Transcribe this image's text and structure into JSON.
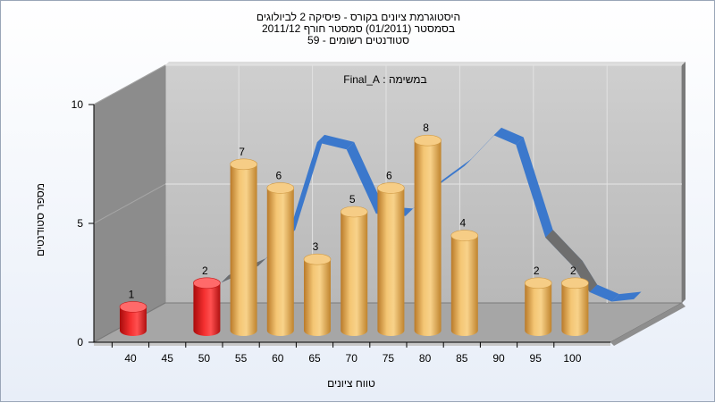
{
  "chart_data": {
    "type": "bar",
    "title": "היסטוגרמת ציונים בקורס - פיסיקה 2 לביולוגים",
    "subtitle_lines": [
      "בסמסטר (01/2011) סמסטר חורף 2011/12",
      "סטודנטים רשומים - 59"
    ],
    "annotation": "במשימה : Final_A",
    "xlabel": "טווח ציונים",
    "ylabel": "מספר סטודנטים",
    "ylim": [
      0,
      10
    ],
    "y_ticks": [
      "0",
      "5",
      "10"
    ],
    "x_ticks": [
      "40",
      "45",
      "50",
      "55",
      "60",
      "65",
      "70",
      "75",
      "80",
      "85",
      "90",
      "95",
      "100"
    ],
    "bars": [
      {
        "x": 40,
        "value": 1,
        "color": "red"
      },
      {
        "x": 50,
        "value": 2,
        "color": "red"
      },
      {
        "x": 55,
        "value": 7,
        "color": "gold"
      },
      {
        "x": 60,
        "value": 6,
        "color": "gold"
      },
      {
        "x": 65,
        "value": 3,
        "color": "gold"
      },
      {
        "x": 70,
        "value": 5,
        "color": "gold"
      },
      {
        "x": 75,
        "value": 6,
        "color": "gold"
      },
      {
        "x": 80,
        "value": 8,
        "color": "gold"
      },
      {
        "x": 85,
        "value": 4,
        "color": "gold"
      },
      {
        "x": 95,
        "value": 2,
        "color": "gold"
      },
      {
        "x": 100,
        "value": 2,
        "color": "gold"
      }
    ],
    "bar_labels": [
      "1",
      "2",
      "7",
      "6",
      "3",
      "5",
      "6",
      "8",
      "4",
      "2",
      "2"
    ],
    "curve": [
      {
        "x": 47,
        "y": 1.6
      },
      {
        "x": 52,
        "y": 2.3
      },
      {
        "x": 56,
        "y": 3.5
      },
      {
        "x": 60,
        "y": 7.5
      },
      {
        "x": 64,
        "y": 7.2
      },
      {
        "x": 68,
        "y": 4.5
      },
      {
        "x": 72,
        "y": 4.4
      },
      {
        "x": 76,
        "y": 5.6
      },
      {
        "x": 80,
        "y": 6.5
      },
      {
        "x": 84,
        "y": 7.8
      },
      {
        "x": 87,
        "y": 7.4
      },
      {
        "x": 91,
        "y": 3.5
      },
      {
        "x": 95,
        "y": 2.2
      },
      {
        "x": 97,
        "y": 1.2
      },
      {
        "x": 100,
        "y": 0.8
      },
      {
        "x": 103,
        "y": 0.9
      }
    ],
    "colors": {
      "red": "#e01818",
      "gold": "#e8a84a",
      "curve_front": "#3b78cc",
      "curve_back": "#6e6e6e",
      "back_wall": "#c4c4c4",
      "side_wall": "#8a8a8a",
      "floor": "#a8a8a8"
    },
    "grid": true
  }
}
